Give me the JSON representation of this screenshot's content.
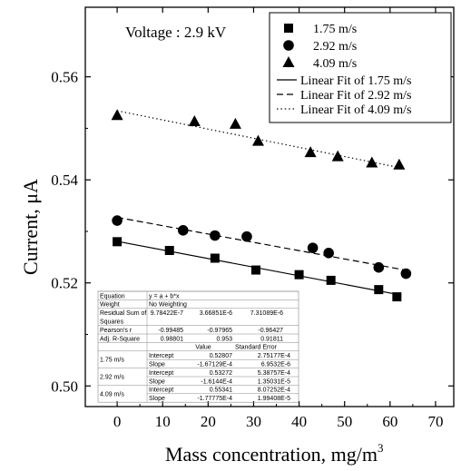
{
  "chart_data": {
    "type": "scatter",
    "annotation": "Voltage : 2.9 kV",
    "xlabel": "Mass concentration, mg/m",
    "xlabel_superscript": "3",
    "ylabel": "Current, μA",
    "xlim": [
      -7,
      74
    ],
    "ylim": [
      0.496,
      0.5735
    ],
    "x_ticks": [
      0,
      10,
      20,
      30,
      40,
      50,
      60,
      70
    ],
    "y_ticks": [
      0.5,
      0.52,
      0.54,
      0.56
    ],
    "y_tick_labels": [
      "0.50",
      "0.52",
      "0.54",
      "0.56"
    ],
    "series": [
      {
        "name": "1.75 m/s",
        "marker": "square",
        "x": [
          0,
          11.5,
          21.5,
          30.5,
          40,
          47,
          57.5,
          61.5
        ],
        "y": [
          0.528,
          0.5263,
          0.5248,
          0.5225,
          0.5216,
          0.5205,
          0.5187,
          0.5173
        ]
      },
      {
        "name": "2.92 m/s",
        "marker": "circle",
        "x": [
          0,
          14.5,
          21.5,
          28.5,
          43,
          46.5,
          57.5,
          63.5
        ],
        "y": [
          0.5321,
          0.5302,
          0.5292,
          0.529,
          0.5268,
          0.5258,
          0.523,
          0.5218
        ]
      },
      {
        "name": "4.09 m/s",
        "marker": "triangle",
        "x": [
          0,
          17,
          26,
          31,
          42.5,
          48.5,
          56,
          62
        ],
        "y": [
          0.5525,
          0.5513,
          0.5508,
          0.5475,
          0.5453,
          0.5445,
          0.5433,
          0.5429
        ]
      }
    ],
    "fits": [
      {
        "name": "Linear Fit of 1.75 m/s",
        "style": "solid",
        "intercept": 0.52807,
        "slope": -0.000167129,
        "x_range": [
          0,
          61.5
        ]
      },
      {
        "name": "Linear Fit of 2.92 m/s",
        "style": "dashed",
        "intercept": 0.53272,
        "slope": -0.00016144,
        "x_range": [
          0,
          63.5
        ]
      },
      {
        "name": "Linear Fit of 4.09 m/s",
        "style": "dotted",
        "intercept": 0.55341,
        "slope": -0.000177775,
        "x_range": [
          0,
          62
        ]
      }
    ],
    "legend_position": "top-right",
    "stats_table": {
      "header": [
        [
          "Equation",
          "y = a + b*x",
          "",
          ""
        ],
        [
          "Weight",
          "No Weighting",
          "",
          ""
        ],
        [
          "Residual Sum of",
          "9.78422E-7",
          "3.66851E-6",
          "7.31089E-6"
        ],
        [
          "Squares",
          "",
          "",
          ""
        ],
        [
          "Pearson's r",
          "-0.99485",
          "-0.97965",
          "-0.96427"
        ],
        [
          "Adj. R-Square",
          "0.98801",
          "0.953",
          "0.91811"
        ]
      ],
      "param_columns": [
        "Value",
        "Standard Error"
      ],
      "groups": [
        {
          "label": "1.75 m/s",
          "rows": [
            [
              "Intercept",
              "0.52807",
              "2.75177E-4"
            ],
            [
              "Slope",
              "-1.67129E-4",
              "6.9532E-6"
            ]
          ]
        },
        {
          "label": "2.92 m/s",
          "rows": [
            [
              "Intercept",
              "0.53272",
              "5.38757E-4"
            ],
            [
              "Slope",
              "-1.6144E-4",
              "1.35031E-5"
            ]
          ]
        },
        {
          "label": "4.09 m/s",
          "rows": [
            [
              "Intercept",
              "0.55341",
              "8.07252E-4"
            ],
            [
              "Slope",
              "-1.77775E-4",
              "1.99408E-5"
            ]
          ]
        }
      ]
    }
  }
}
